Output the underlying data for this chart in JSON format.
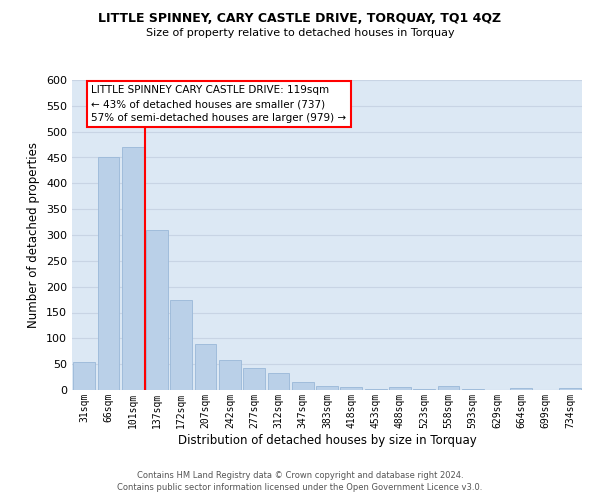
{
  "title": "LITTLE SPINNEY, CARY CASTLE DRIVE, TORQUAY, TQ1 4QZ",
  "subtitle": "Size of property relative to detached houses in Torquay",
  "xlabel": "Distribution of detached houses by size in Torquay",
  "ylabel": "Number of detached properties",
  "bar_color": "#bad0e8",
  "bar_edge_color": "#9ab8d8",
  "grid_color": "#c8d4e4",
  "background_color": "#dce8f4",
  "categories": [
    "31sqm",
    "66sqm",
    "101sqm",
    "137sqm",
    "172sqm",
    "207sqm",
    "242sqm",
    "277sqm",
    "312sqm",
    "347sqm",
    "383sqm",
    "418sqm",
    "453sqm",
    "488sqm",
    "523sqm",
    "558sqm",
    "593sqm",
    "629sqm",
    "664sqm",
    "699sqm",
    "734sqm"
  ],
  "values": [
    55,
    450,
    470,
    310,
    175,
    90,
    58,
    42,
    32,
    15,
    8,
    6,
    2,
    5,
    2,
    8,
    2,
    0,
    3,
    0,
    3
  ],
  "ylim": [
    0,
    600
  ],
  "yticks": [
    0,
    50,
    100,
    150,
    200,
    250,
    300,
    350,
    400,
    450,
    500,
    550,
    600
  ],
  "vline_x": 2.5,
  "annotation_line1": "LITTLE SPINNEY CARY CASTLE DRIVE: 119sqm",
  "annotation_line2": "← 43% of detached houses are smaller (737)",
  "annotation_line3": "57% of semi-detached houses are larger (979) →",
  "footer_line1": "Contains HM Land Registry data © Crown copyright and database right 2024.",
  "footer_line2": "Contains public sector information licensed under the Open Government Licence v3.0."
}
